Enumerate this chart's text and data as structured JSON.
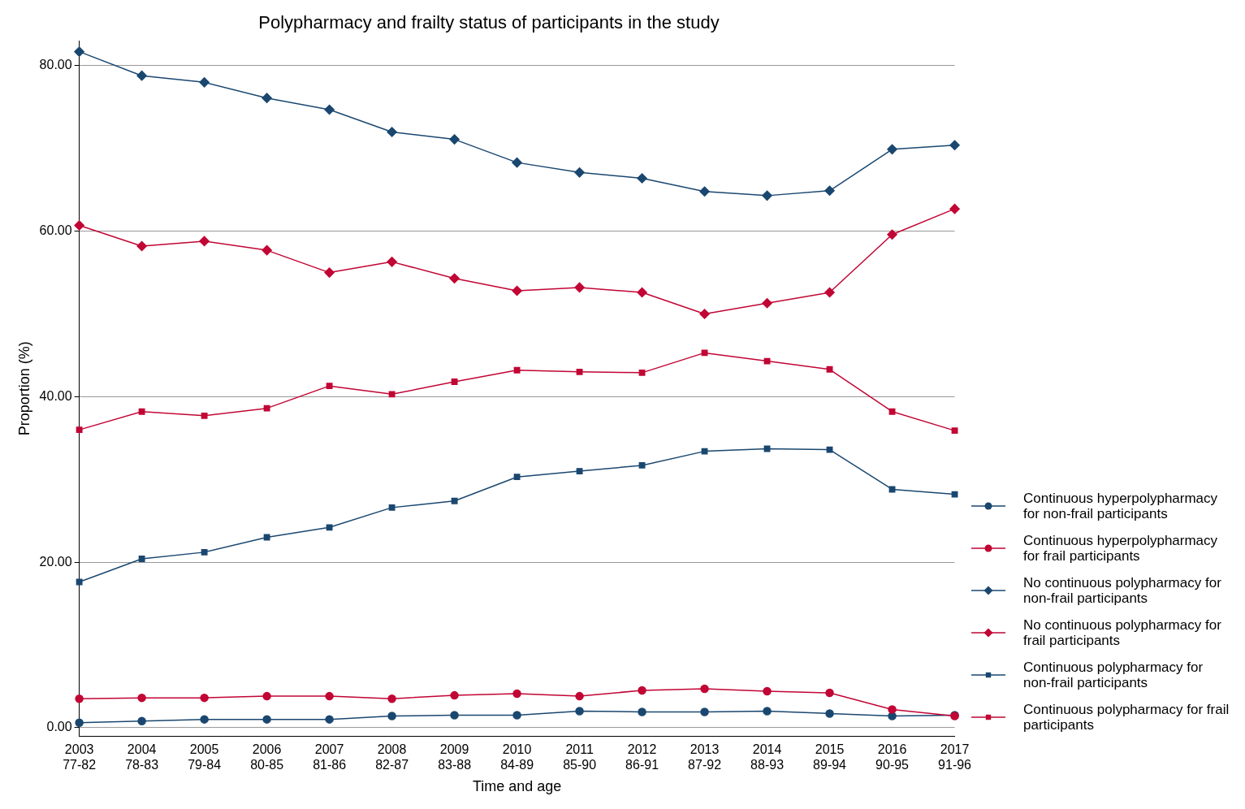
{
  "chart_data": {
    "type": "line",
    "title": "Polypharmacy and frailty status of participants in the study",
    "xlabel": "Time and age",
    "ylabel": "Proportion (%)",
    "categories": [
      "2003\n77-82",
      "2004\n78-83",
      "2005\n79-84",
      "2006\n80-85",
      "2007\n81-86",
      "2008\n82-87",
      "2009\n83-88",
      "2010\n84-89",
      "2011\n85-90",
      "2012\n86-91",
      "2013\n87-92",
      "2014\n88-93",
      "2015\n89-94",
      "2016\n90-95",
      "2017\n91-96"
    ],
    "ylim": [
      -1,
      83
    ],
    "yticks": [
      {
        "value": 0,
        "label": "0.00"
      },
      {
        "value": 20,
        "label": "20.00"
      },
      {
        "value": 40,
        "label": "40.00"
      },
      {
        "value": 60,
        "label": "60.00"
      },
      {
        "value": 80,
        "label": "80.00"
      }
    ],
    "grid": "y",
    "legend": "right",
    "line_style": "solid",
    "series": [
      {
        "name": "Continuous hyperpolypharmacy for non-frail participants",
        "color": "#1a476f",
        "marker": "circle",
        "values": [
          0.6,
          0.8,
          1.0,
          1.0,
          1.0,
          1.4,
          1.5,
          1.5,
          2.0,
          1.9,
          1.9,
          2.0,
          1.7,
          1.4,
          1.5
        ]
      },
      {
        "name": "Continuous hyperpolypharmacy for frail participants",
        "color": "#c10534",
        "marker": "circle",
        "values": [
          3.5,
          3.6,
          3.6,
          3.8,
          3.8,
          3.5,
          3.9,
          4.1,
          3.8,
          4.5,
          4.7,
          4.4,
          4.2,
          2.2,
          1.4
        ]
      },
      {
        "name": "No continuous polypharmacy for non-frail participants",
        "color": "#1a476f",
        "marker": "diamond",
        "values": [
          81.7,
          78.8,
          78.0,
          76.1,
          74.7,
          72.0,
          71.1,
          68.3,
          67.1,
          66.4,
          64.8,
          64.3,
          64.9,
          69.9,
          70.4
        ]
      },
      {
        "name": "No continuous polypharmacy for frail participants",
        "color": "#c10534",
        "marker": "diamond",
        "values": [
          60.7,
          58.2,
          58.8,
          57.7,
          55.0,
          56.3,
          54.3,
          52.8,
          53.2,
          52.6,
          50.0,
          51.3,
          52.6,
          59.6,
          62.7
        ]
      },
      {
        "name": "Continuous polypharmacy for non-frail participants",
        "color": "#1a476f",
        "marker": "square",
        "values": [
          17.6,
          20.4,
          21.2,
          23.0,
          24.2,
          26.6,
          27.4,
          30.3,
          31.0,
          31.7,
          33.4,
          33.7,
          33.6,
          28.8,
          28.2
        ]
      },
      {
        "name": "Continuous polypharmacy for frail participants",
        "color": "#c10534",
        "marker": "square",
        "values": [
          36.0,
          38.2,
          37.7,
          38.6,
          41.3,
          40.3,
          41.8,
          43.2,
          43.0,
          42.9,
          45.3,
          44.3,
          43.3,
          38.2,
          35.9
        ]
      }
    ]
  }
}
